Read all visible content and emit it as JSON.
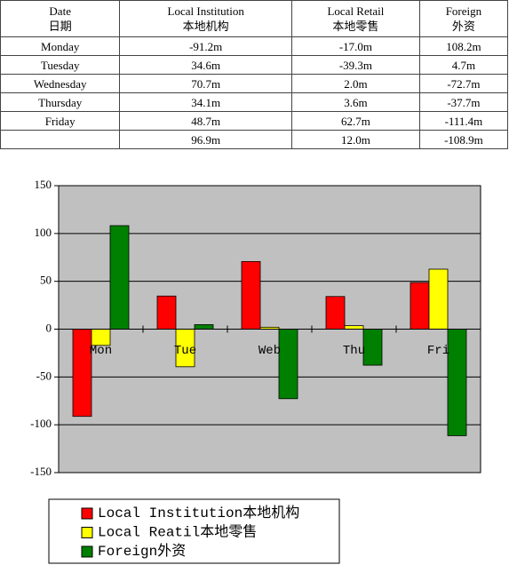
{
  "table": {
    "columns": [
      {
        "en": "Date",
        "zh": "日期"
      },
      {
        "en": "Local Institution",
        "zh": "本地机构"
      },
      {
        "en": "Local Retail",
        "zh": "本地零售"
      },
      {
        "en": "Foreign",
        "zh": "外资"
      }
    ],
    "rows": [
      [
        "Monday",
        "-91.2m",
        "-17.0m",
        "108.2m"
      ],
      [
        "Tuesday",
        "34.6m",
        "-39.3m",
        "4.7m"
      ],
      [
        "Wednesday",
        "70.7m",
        "2.0m",
        "-72.7m"
      ],
      [
        "Thursday",
        "34.1m",
        "3.6m",
        "-37.7m"
      ],
      [
        "Friday",
        "48.7m",
        "62.7m",
        "-111.4m"
      ],
      [
        null,
        "96.9m",
        "12.0m",
        "-108.9m"
      ]
    ]
  },
  "chart_data": {
    "type": "bar",
    "categories": [
      "Mon",
      "Tue",
      "Web",
      "Thu",
      "Fri"
    ],
    "series": [
      {
        "name": "Local Institution本地机构",
        "color": "#ff0000",
        "values": [
          -91.2,
          34.6,
          70.7,
          34.1,
          48.7
        ]
      },
      {
        "name": "Local Reatil本地零售",
        "color": "#ffff00",
        "values": [
          -17.0,
          -39.3,
          2.0,
          3.6,
          62.7
        ]
      },
      {
        "name": "Foreign外资",
        "color": "#008000",
        "values": [
          108.2,
          4.7,
          -72.7,
          -37.7,
          -111.4
        ]
      }
    ],
    "ylim": [
      -150,
      150
    ],
    "yticks": [
      -150,
      -100,
      -50,
      0,
      50,
      100,
      150
    ],
    "grid": true,
    "background": "#c0c0c0"
  }
}
